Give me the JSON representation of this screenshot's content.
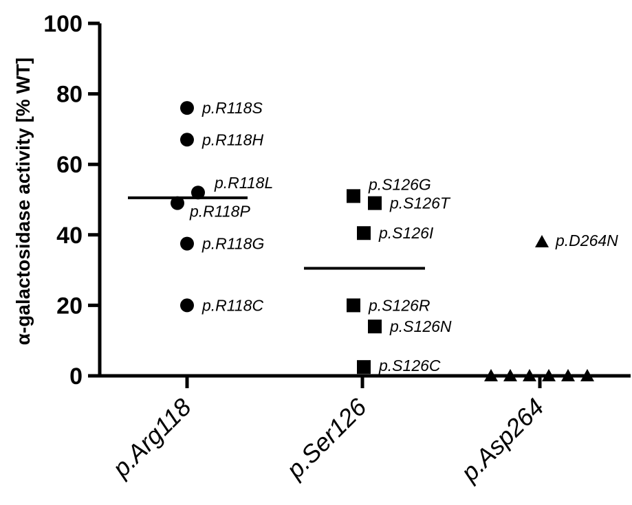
{
  "chart_data": {
    "type": "scatter",
    "ylabel": "α-galactosidase activity [% WT]",
    "ylim": [
      0,
      100
    ],
    "yticks": [
      0,
      20,
      40,
      60,
      80,
      100
    ],
    "categories": [
      "p.Arg118",
      "p.Ser126",
      "p.Asp264"
    ],
    "series": [
      {
        "category": "p.Arg118",
        "marker": "circle",
        "mean": 50.5,
        "points": [
          {
            "label": "p.R118S",
            "y": 76
          },
          {
            "label": "p.R118H",
            "y": 67
          },
          {
            "label": "p.R118L",
            "y": 52
          },
          {
            "label": "p.R118P",
            "y": 49
          },
          {
            "label": "p.R118G",
            "y": 37.5
          },
          {
            "label": "p.R118C",
            "y": 20
          }
        ]
      },
      {
        "category": "p.Ser126",
        "marker": "square",
        "mean": 30.5,
        "points": [
          {
            "label": "p.S126G",
            "y": 51
          },
          {
            "label": "p.S126T",
            "y": 49
          },
          {
            "label": "p.S126I",
            "y": 40.5
          },
          {
            "label": "p.S126R",
            "y": 20
          },
          {
            "label": "p.S126N",
            "y": 14
          },
          {
            "label": "p.S126C",
            "y": 2.5
          }
        ]
      },
      {
        "category": "p.Asp264",
        "marker": "triangle",
        "mean": 0,
        "points": [
          {
            "label": "p.D264N",
            "y": 38
          },
          {
            "label": "",
            "y": 0
          },
          {
            "label": "",
            "y": 0
          },
          {
            "label": "",
            "y": 0
          },
          {
            "label": "",
            "y": 0
          },
          {
            "label": "",
            "y": 0
          },
          {
            "label": "",
            "y": 0
          }
        ]
      }
    ]
  }
}
